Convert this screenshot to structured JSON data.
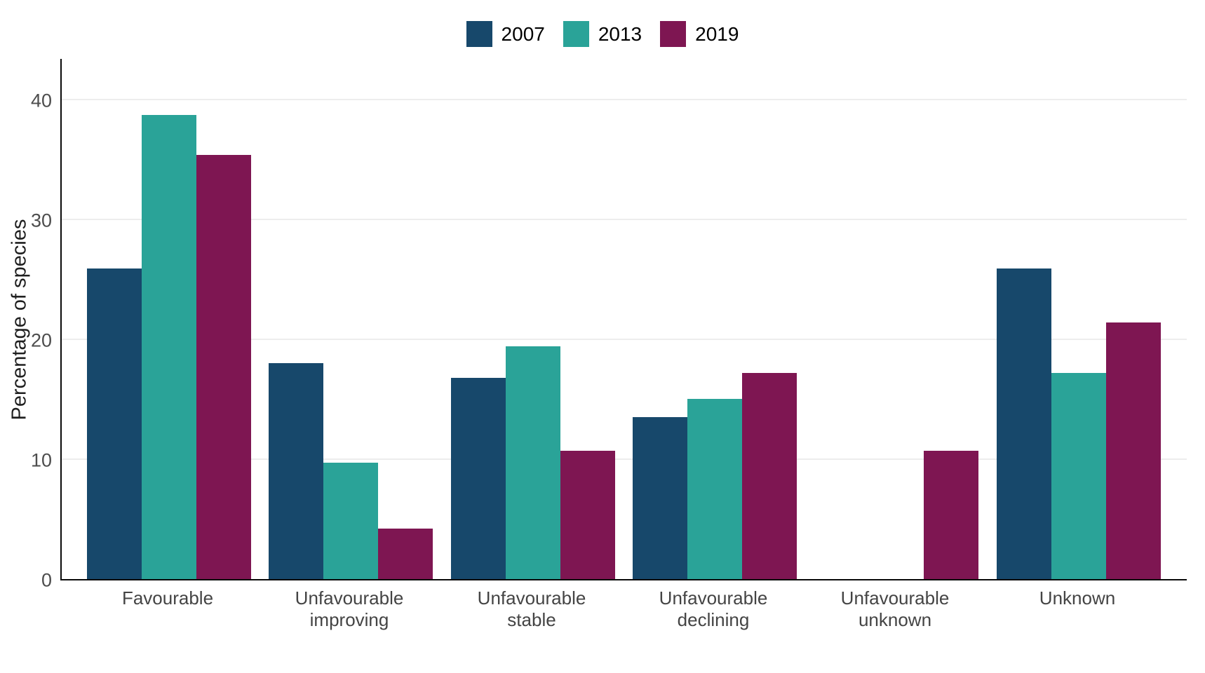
{
  "chart_data": {
    "type": "bar",
    "title": "",
    "ylabel": "Percentage of species",
    "xlabel": "",
    "categories": [
      "Favourable",
      "Unfavourable improving",
      "Unfavourable stable",
      "Unfavourable declining",
      "Unfavourable unknown",
      "Unknown"
    ],
    "category_label_lines": [
      "Favourable",
      "Unfavourable\nimproving",
      "Unfavourable\nstable",
      "Unfavourable\ndeclining",
      "Unfavourable\nunknown",
      "Unknown"
    ],
    "series": [
      {
        "name": "2007",
        "color": "#17486b",
        "values": [
          25.9,
          18.0,
          16.8,
          13.5,
          0,
          25.9
        ]
      },
      {
        "name": "2013",
        "color": "#2aa398",
        "values": [
          38.7,
          9.7,
          19.4,
          15.0,
          0,
          17.2
        ]
      },
      {
        "name": "2019",
        "color": "#7e1652",
        "values": [
          35.4,
          4.2,
          10.7,
          17.2,
          10.7,
          21.4
        ]
      }
    ],
    "yticks": [
      0,
      10,
      20,
      30,
      40
    ],
    "ylim": [
      0,
      43.5
    ],
    "grid": "horizontal-light",
    "legend_position": "top-center",
    "background": "#ffffff",
    "gridline_color": "#ededed",
    "axis_line_color": "#0a0a0a",
    "tick_label_color": "#4d4d4d",
    "category_label_color": "#444444"
  }
}
